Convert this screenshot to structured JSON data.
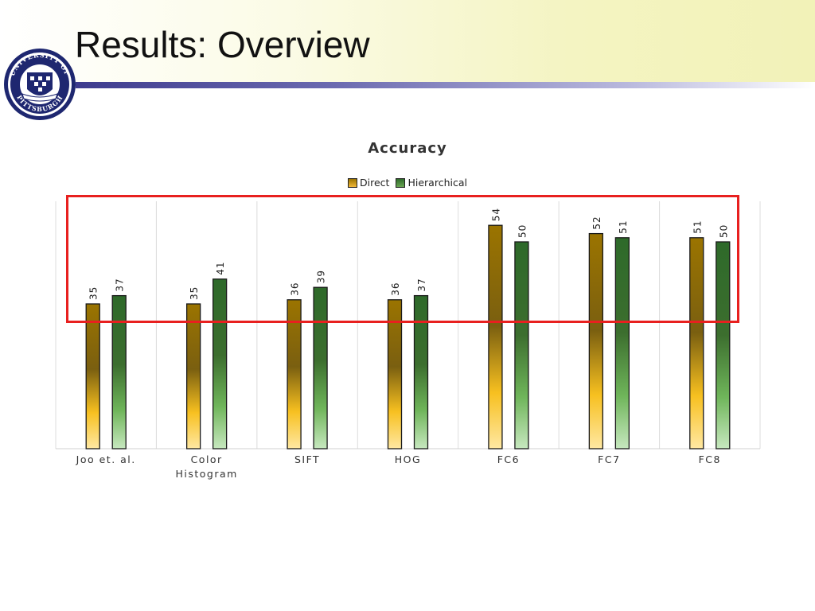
{
  "slide": {
    "title": "Results: Overview"
  },
  "logo": {
    "icon": "university-of-pittsburgh-seal",
    "text_top": "UNIVERSITY OF",
    "text_bottom": "PITTSBURGH"
  },
  "chart_data": {
    "type": "bar",
    "title": "Accuracy",
    "categories": [
      "Joo et. al.",
      "Color Histogram",
      "SIFT",
      "HOG",
      "FC6",
      "FC7",
      "FC8"
    ],
    "series": [
      {
        "name": "Direct",
        "values": [
          35,
          35,
          36,
          36,
          54,
          52,
          51
        ]
      },
      {
        "name": "Hierarchical",
        "values": [
          37,
          41,
          39,
          37,
          50,
          51,
          50
        ]
      }
    ],
    "xlabel": "",
    "ylabel": "",
    "ylim": [
      0,
      60
    ],
    "grid": "vertical category separators",
    "legend_position": "top",
    "colors": {
      "direct_top": "#9b7400",
      "direct_bottom": "#ffe8a3",
      "hierarchical_top": "#2e6a2a",
      "hierarchical_bottom": "#c7e8bf",
      "highlight": "#e8201f"
    },
    "annotation": "red rectangle highlighting the tops of all bars"
  }
}
